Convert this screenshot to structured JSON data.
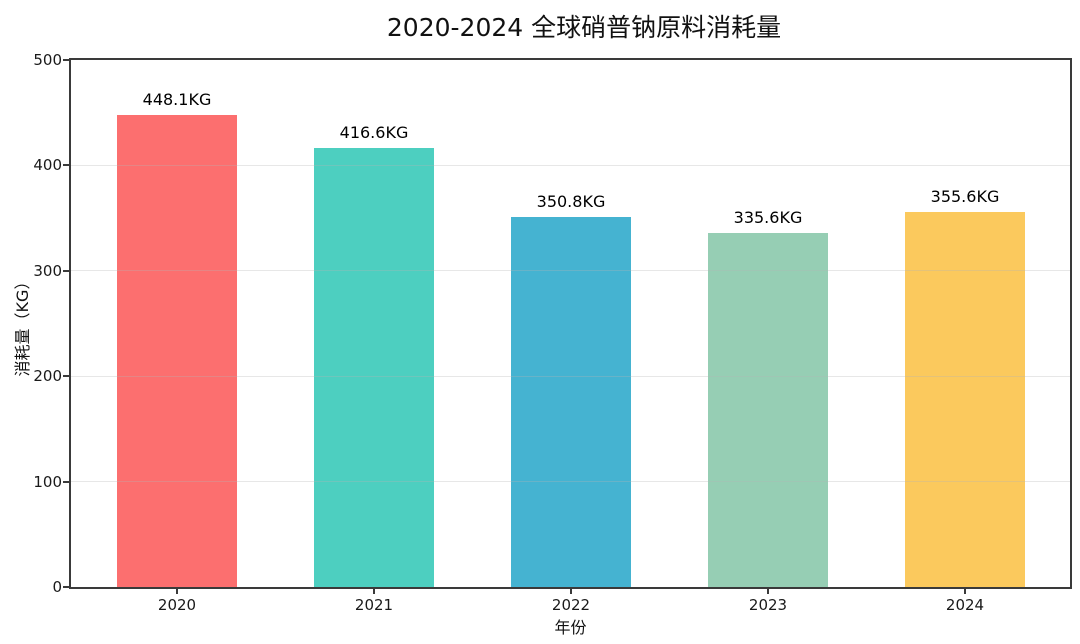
{
  "chart_data": {
    "type": "bar",
    "title": "2020-2024 全球硝普钠原料消耗量",
    "xlabel": "年份",
    "ylabel": "消耗量（KG）",
    "categories": [
      "2020",
      "2021",
      "2022",
      "2023",
      "2024"
    ],
    "values": [
      448.1,
      416.6,
      350.8,
      335.6,
      355.6
    ],
    "value_labels": [
      "448.1KG",
      "416.6KG",
      "350.8KG",
      "335.6KG",
      "355.6KG"
    ],
    "bar_colors": [
      "#FC6F6F",
      "#4DCFC0",
      "#45B3D1",
      "#96CEB4",
      "#FBC95D"
    ],
    "ylim": [
      0,
      500
    ],
    "yticks": [
      0,
      100,
      200,
      300,
      400,
      500
    ],
    "grid": "horizontal",
    "legend": "none"
  },
  "style": {
    "background": "#ffffff",
    "axis_color": "#3a3a3a",
    "grid_color": "rgba(180,180,180,0.32)",
    "tick_label_color": "#1a1a1a",
    "value_label_color": "#000000"
  }
}
